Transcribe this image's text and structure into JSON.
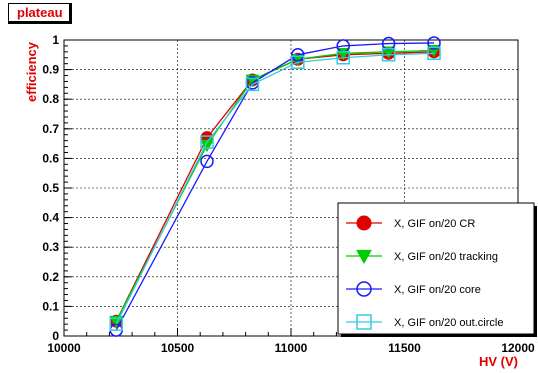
{
  "chart_data": {
    "type": "line",
    "title": "plateau",
    "xlabel": "HV (V)",
    "ylabel": "efficiency",
    "xlim": [
      10000,
      12000
    ],
    "ylim": [
      0,
      1
    ],
    "grid": true,
    "legend_position": "bottom-right",
    "x_ticks": [
      "10000",
      "10500",
      "11000",
      "11500",
      "12000"
    ],
    "y_ticks": [
      "0",
      "0.1",
      "0.2",
      "0.3",
      "0.4",
      "0.5",
      "0.6",
      "0.7",
      "0.8",
      "0.9",
      "1"
    ],
    "x": [
      10230,
      10630,
      10830,
      11030,
      11230,
      11430,
      11630
    ],
    "series": [
      {
        "name": "X, GIF on/20 CR",
        "color": "#e00000",
        "marker": "filled-circle",
        "values": [
          0.05,
          0.67,
          0.865,
          0.935,
          0.95,
          0.955,
          0.96
        ]
      },
      {
        "name": "X, GIF on/20 tracking",
        "color": "#00cc00",
        "marker": "filled-triangle-down",
        "values": [
          0.05,
          0.645,
          0.865,
          0.935,
          0.955,
          0.96,
          0.965
        ]
      },
      {
        "name": "X, GIF on/20 core",
        "color": "#1a1aff",
        "marker": "open-circle",
        "values": [
          0.02,
          0.59,
          0.855,
          0.95,
          0.98,
          0.988,
          0.99
        ]
      },
      {
        "name": "X, GIF on/20 out.circle",
        "color": "#33ccdd",
        "marker": "open-square",
        "values": [
          0.04,
          0.655,
          0.85,
          0.925,
          0.94,
          0.95,
          0.955
        ]
      }
    ]
  }
}
